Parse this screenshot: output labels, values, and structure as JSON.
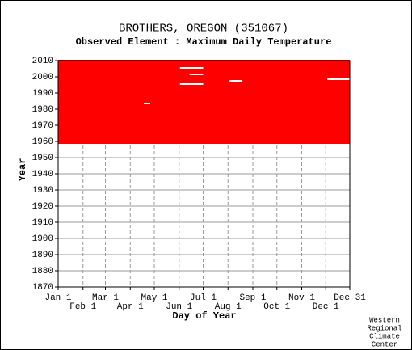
{
  "chart_data": {
    "type": "availability",
    "title": "BROTHERS, OREGON   (351067)",
    "subtitle": "Observed Element : Maximum Daily Temperature",
    "x_label": "Day of Year",
    "y_label": "Year",
    "credit": [
      "Western",
      "Regional",
      "Climate",
      "Center"
    ],
    "color": "#ff0000",
    "first_year": 1959,
    "last_year": 2010,
    "gaps": [
      {
        "day_start": 153,
        "day_end": 182,
        "year_start": 2005,
        "year_end": 2006
      },
      {
        "day_start": 165,
        "day_end": 182,
        "year_start": 2001,
        "year_end": 2002
      },
      {
        "day_start": 153,
        "day_end": 182,
        "year_start": 1995,
        "year_end": 1996
      },
      {
        "day_start": 215,
        "day_end": 231,
        "year_start": 1997,
        "year_end": 1998
      },
      {
        "day_start": 108,
        "day_end": 116,
        "year_start": 1983,
        "year_end": 1984
      },
      {
        "day_start": 337,
        "day_end": 365,
        "year_start": 1998,
        "year_end": 1999
      }
    ],
    "xlim": [
      1,
      365
    ],
    "xticks": [
      {
        "value": 1,
        "label": "Jan 1"
      },
      {
        "value": 32,
        "label": "Feb 1"
      },
      {
        "value": 60,
        "label": "Mar 1"
      },
      {
        "value": 91,
        "label": "Apr 1"
      },
      {
        "value": 121,
        "label": "May 1"
      },
      {
        "value": 152,
        "label": "Jun 1"
      },
      {
        "value": 182,
        "label": "Jul 1"
      },
      {
        "value": 213,
        "label": "Aug 1"
      },
      {
        "value": 244,
        "label": "Sep 1"
      },
      {
        "value": 274,
        "label": "Oct 1"
      },
      {
        "value": 305,
        "label": "Nov 1"
      },
      {
        "value": 335,
        "label": "Dec 1"
      },
      {
        "value": 365,
        "label": "Dec 31"
      }
    ],
    "ylim": [
      1870,
      2010
    ],
    "yticks": [
      1870,
      1880,
      1890,
      1900,
      1910,
      1920,
      1930,
      1940,
      1950,
      1960,
      1970,
      1980,
      1990,
      2000,
      2010
    ],
    "grid": true
  }
}
